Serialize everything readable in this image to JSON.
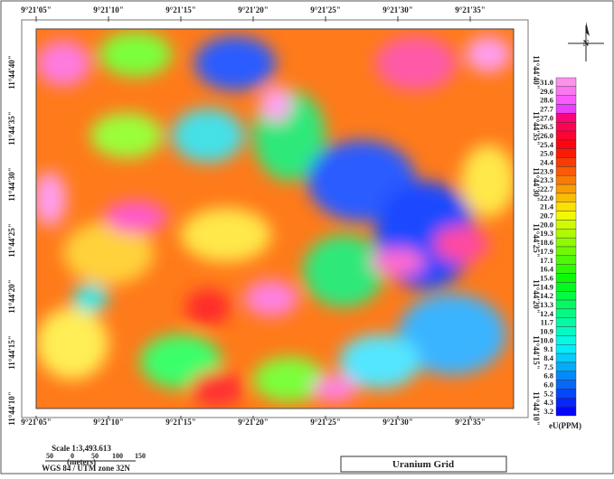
{
  "top_labels": [
    "9°21'05\"",
    "9°21'10\"",
    "9°21'15\"",
    "9°21'20\"",
    "9°21'25\"",
    "9°21'30\"",
    "9°21'35\""
  ],
  "bottom_labels": [
    "9°21'05\"",
    "9°21'10\"",
    "9°21'15\"",
    "9°21'20\"",
    "9°21'25\"",
    "9°21'30\"",
    "9°21'35\""
  ],
  "left_labels": [
    "11°44'40\"",
    "11°44'35\"",
    "11°44'30\"",
    "11°44'25\"",
    "11°44'20\"",
    "11°44'15\"",
    "11°44'10\""
  ],
  "right_labels": [
    "11°44'40\"",
    "11°44'35\"",
    "11°44'30\"",
    "11°44'25\"",
    "11°44'20\"",
    "11°44'15\"",
    "11°44'10\""
  ],
  "legend": {
    "title": "eU(PPM)",
    "labels": [
      "31.0",
      "29.6",
      "28.6",
      "27.7",
      "27.0",
      "26.5",
      "26.0",
      "25.4",
      "25.0",
      "24.4",
      "23.9",
      "23.3",
      "22.7",
      "22.0",
      "21.4",
      "20.7",
      "20.0",
      "19.3",
      "18.6",
      "17.9",
      "17.1",
      "16.4",
      "15.6",
      "14.9",
      "14.2",
      "13.3",
      "12.4",
      "11.7",
      "10.9",
      "10.0",
      "9.1",
      "8.4",
      "7.5",
      "6.8",
      "6.0",
      "5.2",
      "4.3",
      "3.2"
    ]
  },
  "north": "N",
  "scale": {
    "text": "Scale 1:3,493.613",
    "bar_labels": [
      "50",
      "0",
      "50",
      "100",
      "150"
    ],
    "unit": "(meters)",
    "projection": "WGS 84 / UTM zone 32N"
  },
  "title": "Uranium Grid"
}
